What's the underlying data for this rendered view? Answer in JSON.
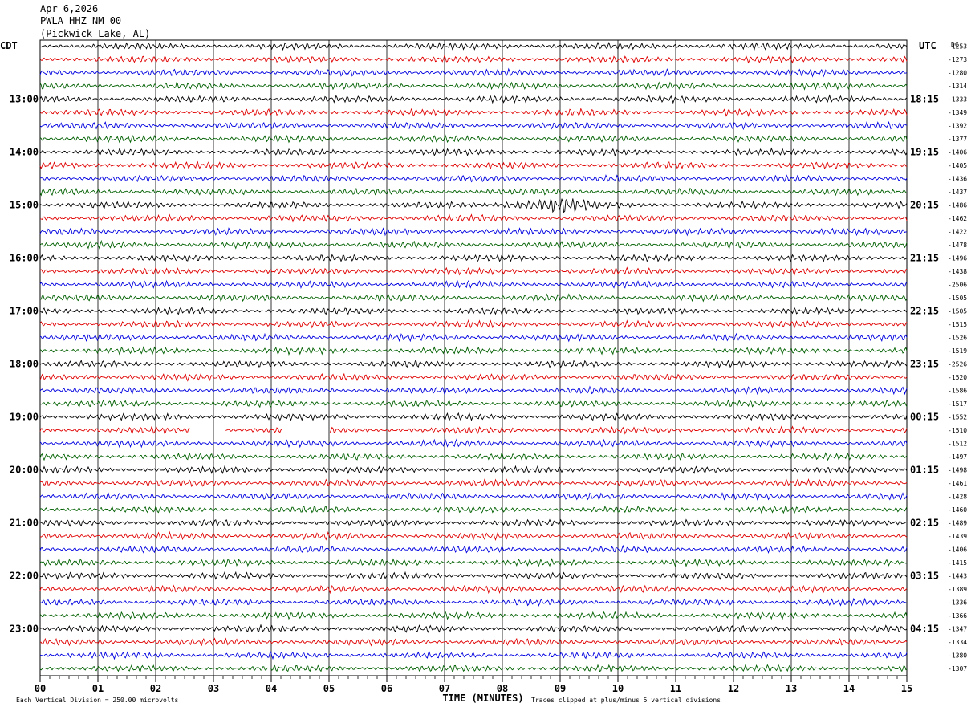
{
  "header": {
    "date": "Apr 6,2026",
    "station": "PWLA HHZ NM 00",
    "location": "(Pickwick Lake, AL)"
  },
  "left_axis_label": "CDT",
  "right_axis_label": "UTC",
  "dc_label": "DC",
  "colors": {
    "black": "#000000",
    "red": "#e00000",
    "blue": "#0000e0",
    "green": "#006000",
    "grid": "#000000"
  },
  "chart_data": {
    "type": "line",
    "title": "",
    "xlabel": "TIME (MINUTES)",
    "x_ticks": [
      "00",
      "01",
      "02",
      "03",
      "04",
      "05",
      "06",
      "07",
      "08",
      "09",
      "10",
      "11",
      "12",
      "13",
      "14",
      "15"
    ],
    "xlim": [
      0,
      15
    ],
    "left_hour_labels": [
      "13:00",
      "14:00",
      "15:00",
      "16:00",
      "17:00",
      "18:00",
      "19:00",
      "20:00",
      "21:00",
      "22:00",
      "23:00"
    ],
    "right_hour_labels": [
      "18:15",
      "19:15",
      "20:15",
      "21:15",
      "22:15",
      "23:15",
      "00:15",
      "01:15",
      "02:15",
      "03:15",
      "04:15"
    ],
    "dc_values": [
      "-1253",
      "-1273",
      "-1280",
      "-1314",
      "-1333",
      "-1349",
      "-1392",
      "-1377",
      "-1406",
      "-1405",
      "-1436",
      "-1437",
      "-1486",
      "-1462",
      "-1422",
      "-1478",
      "-1496",
      "-1438",
      "-2506",
      "-1505",
      "-1505",
      "-1515",
      "-1526",
      "-1519",
      "-2526",
      "-1520",
      "-1586",
      "-1517",
      "-1552",
      "-1510",
      "-1512",
      "-1497",
      "-1498",
      "-1461",
      "-1428",
      "-1460",
      "-1489",
      "-1439",
      "-1406",
      "-1415",
      "-1443",
      "-1389",
      "-1336",
      "-1366",
      "-1347",
      "-1334",
      "-1380",
      "-1307"
    ],
    "trace_color_cycle": [
      "black",
      "red",
      "blue",
      "green"
    ],
    "trace_count": 48,
    "traces_per_hour": 4,
    "first_hour_label_trace": 4,
    "vertical_division_note": "Each Vertical Division =  250.00 microvolts",
    "clip_note": "Traces clipped at plus/minus 5 vertical divisions",
    "events": [
      {
        "trace": 12,
        "start_min": 7.8,
        "end_min": 10.2,
        "amplitude": 2.4
      }
    ],
    "gaps": [
      {
        "trace": 29,
        "start_min": 2.6,
        "end_min": 3.2
      },
      {
        "trace": 29,
        "start_min": 4.2,
        "end_min": 5.0
      }
    ]
  }
}
